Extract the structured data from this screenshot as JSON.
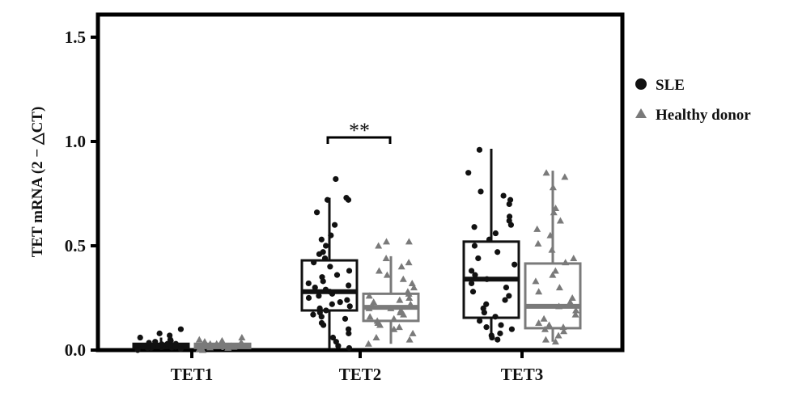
{
  "chart_data": {
    "type": "box",
    "title": "",
    "xlabel": "",
    "ylabel": "TET mRNA (2 − △CT)",
    "ylim": [
      0,
      1.55
    ],
    "yticks": [
      "0.0",
      "0.5",
      "1.0",
      "1.5"
    ],
    "ytick_values": [
      0,
      0.5,
      1.0,
      1.5
    ],
    "categories": [
      "TET1",
      "TET2",
      "TET3"
    ],
    "legend": {
      "placement": "right",
      "entries": [
        {
          "name": "SLE",
          "marker": "circle",
          "color": "#111111"
        },
        {
          "name": "Healthy donor",
          "marker": "triangle",
          "color": "#7a7a7a"
        }
      ]
    },
    "series": [
      {
        "name": "SLE",
        "color": "#111111",
        "boxes": [
          {
            "category": "TET1",
            "q1": 0.01,
            "median": 0.02,
            "q3": 0.03,
            "whisker_low": 0.0,
            "whisker_high": 0.06,
            "points": [
              0.0,
              0.005,
              0.01,
              0.01,
              0.012,
              0.015,
              0.02,
              0.02,
              0.02,
              0.022,
              0.025,
              0.03,
              0.03,
              0.035,
              0.04,
              0.045,
              0.05,
              0.06,
              0.07,
              0.08,
              0.1,
              0.015,
              0.018,
              0.028
            ]
          },
          {
            "category": "TET2",
            "q1": 0.19,
            "median": 0.28,
            "q3": 0.43,
            "whisker_low": 0.01,
            "whisker_high": 0.73,
            "points": [
              0.01,
              0.02,
              0.04,
              0.06,
              0.08,
              0.1,
              0.12,
              0.13,
              0.15,
              0.16,
              0.17,
              0.18,
              0.19,
              0.2,
              0.21,
              0.22,
              0.23,
              0.24,
              0.25,
              0.26,
              0.27,
              0.28,
              0.29,
              0.3,
              0.31,
              0.32,
              0.33,
              0.35,
              0.36,
              0.38,
              0.4,
              0.42,
              0.44,
              0.46,
              0.47,
              0.5,
              0.53,
              0.55,
              0.6,
              0.66,
              0.72,
              0.72,
              0.73,
              0.82
            ]
          },
          {
            "category": "TET3",
            "q1": 0.155,
            "median": 0.34,
            "q3": 0.52,
            "whisker_low": 0.05,
            "whisker_high": 0.965,
            "points": [
              0.05,
              0.06,
              0.07,
              0.08,
              0.1,
              0.11,
              0.12,
              0.14,
              0.16,
              0.18,
              0.2,
              0.22,
              0.24,
              0.26,
              0.28,
              0.3,
              0.32,
              0.34,
              0.36,
              0.38,
              0.41,
              0.44,
              0.47,
              0.5,
              0.53,
              0.56,
              0.59,
              0.6,
              0.62,
              0.64,
              0.7,
              0.72,
              0.74,
              0.76,
              0.85,
              0.96
            ]
          }
        ]
      },
      {
        "name": "Healthy donor",
        "color": "#7a7a7a",
        "boxes": [
          {
            "category": "TET1",
            "q1": 0.01,
            "median": 0.02,
            "q3": 0.03,
            "whisker_low": 0.0,
            "whisker_high": 0.05,
            "points": [
              0.0,
              0.005,
              0.01,
              0.012,
              0.015,
              0.02,
              0.02,
              0.022,
              0.025,
              0.03,
              0.03,
              0.035,
              0.04,
              0.045,
              0.05,
              0.06,
              0.018,
              0.028
            ]
          },
          {
            "category": "TET2",
            "q1": 0.14,
            "median": 0.205,
            "q3": 0.27,
            "whisker_low": 0.03,
            "whisker_high": 0.45,
            "points": [
              0.03,
              0.05,
              0.06,
              0.08,
              0.1,
              0.11,
              0.12,
              0.13,
              0.14,
              0.15,
              0.16,
              0.17,
              0.18,
              0.19,
              0.2,
              0.2,
              0.21,
              0.22,
              0.23,
              0.24,
              0.25,
              0.26,
              0.27,
              0.28,
              0.3,
              0.32,
              0.34,
              0.36,
              0.38,
              0.4,
              0.42,
              0.44,
              0.5,
              0.52,
              0.52
            ]
          },
          {
            "category": "TET3",
            "q1": 0.105,
            "median": 0.21,
            "q3": 0.415,
            "whisker_low": 0.04,
            "whisker_high": 0.86,
            "points": [
              0.04,
              0.05,
              0.07,
              0.09,
              0.1,
              0.11,
              0.12,
              0.13,
              0.15,
              0.17,
              0.19,
              0.21,
              0.23,
              0.25,
              0.28,
              0.3,
              0.33,
              0.36,
              0.38,
              0.42,
              0.44,
              0.48,
              0.51,
              0.55,
              0.58,
              0.62,
              0.66,
              0.68,
              0.78,
              0.83,
              0.85
            ]
          }
        ]
      }
    ],
    "annotations": [
      {
        "text": "**",
        "between": [
          "TET2 SLE",
          "TET2 Healthy donor"
        ]
      }
    ]
  }
}
